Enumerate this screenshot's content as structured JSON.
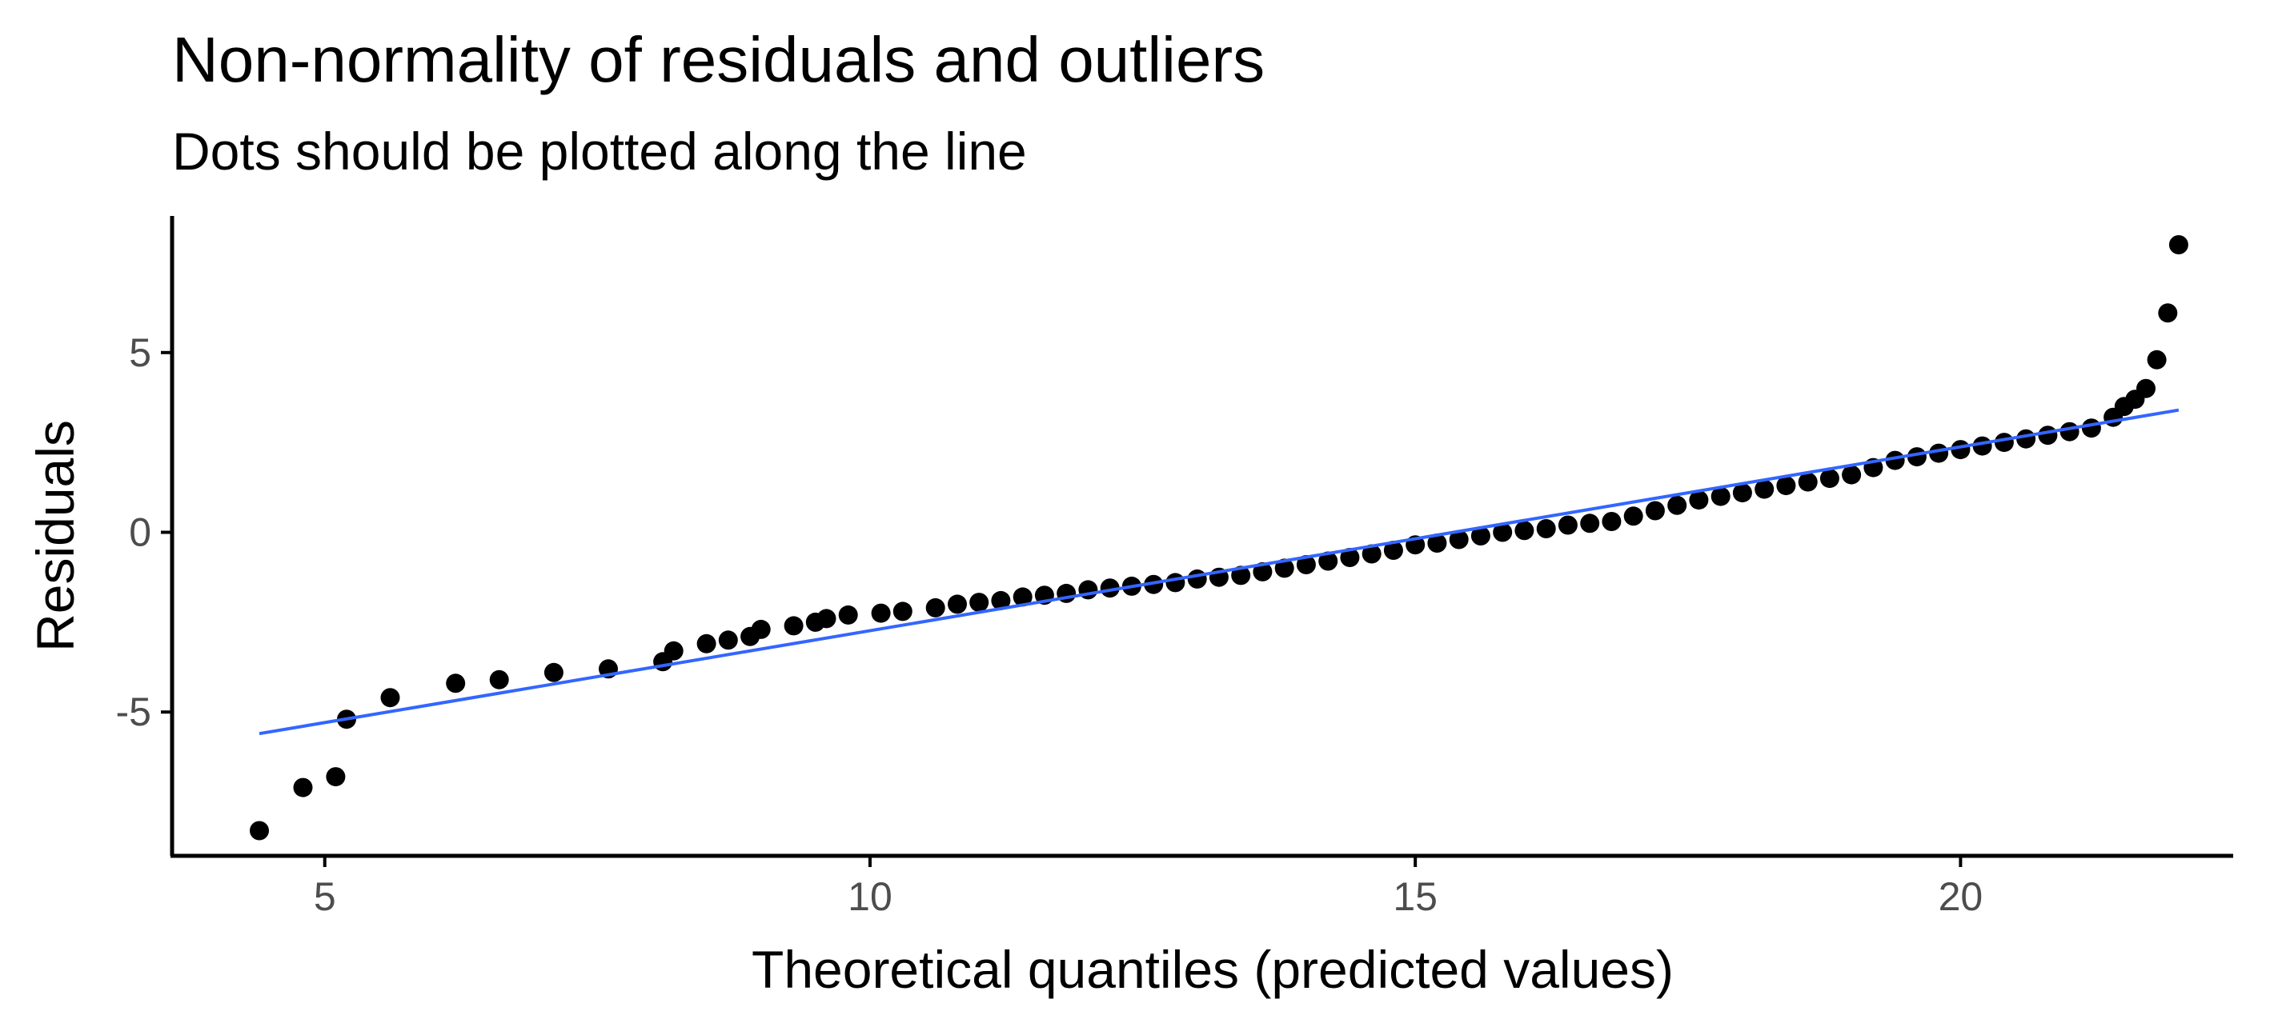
{
  "chart_data": {
    "type": "scatter",
    "title": "Non-normality of residuals and outliers",
    "subtitle": "Dots should be plotted along the line",
    "xlabel": "Theoretical quantiles (predicted values)",
    "ylabel": "Residuals",
    "xlim": [
      3.6,
      22.5
    ],
    "ylim": [
      -9.0,
      8.8
    ],
    "x_ticks": [
      5,
      10,
      15,
      20
    ],
    "x_tick_labels": [
      "5",
      "10",
      "15",
      "20"
    ],
    "y_ticks": [
      -5,
      0,
      5
    ],
    "y_tick_labels": [
      "-5",
      "0",
      "5"
    ],
    "grid": false,
    "legend": "none",
    "colors": {
      "points": "#000000",
      "line": "#3366FF"
    },
    "reference_line": {
      "x": [
        4.4,
        22.0
      ],
      "y": [
        -5.6,
        3.4
      ]
    },
    "series": [
      {
        "points": [
          [
            4.4,
            -8.3
          ],
          [
            4.8,
            -7.1
          ],
          [
            5.1,
            -6.8
          ],
          [
            5.2,
            -5.2
          ],
          [
            5.6,
            -4.6
          ],
          [
            6.2,
            -4.2
          ],
          [
            6.6,
            -4.1
          ],
          [
            7.1,
            -3.9
          ],
          [
            7.6,
            -3.8
          ],
          [
            8.1,
            -3.6
          ],
          [
            8.2,
            -3.3
          ],
          [
            8.5,
            -3.1
          ],
          [
            8.7,
            -3.0
          ],
          [
            8.9,
            -2.9
          ],
          [
            9.0,
            -2.7
          ],
          [
            9.3,
            -2.6
          ],
          [
            9.5,
            -2.5
          ],
          [
            9.6,
            -2.4
          ],
          [
            9.8,
            -2.3
          ],
          [
            10.1,
            -2.25
          ],
          [
            10.3,
            -2.2
          ],
          [
            10.6,
            -2.1
          ],
          [
            10.8,
            -2.0
          ],
          [
            11.0,
            -1.95
          ],
          [
            11.2,
            -1.9
          ],
          [
            11.4,
            -1.8
          ],
          [
            11.6,
            -1.75
          ],
          [
            11.8,
            -1.7
          ],
          [
            12.0,
            -1.6
          ],
          [
            12.2,
            -1.55
          ],
          [
            12.4,
            -1.5
          ],
          [
            12.6,
            -1.45
          ],
          [
            12.8,
            -1.4
          ],
          [
            13.0,
            -1.3
          ],
          [
            13.2,
            -1.25
          ],
          [
            13.4,
            -1.2
          ],
          [
            13.6,
            -1.1
          ],
          [
            13.8,
            -1.0
          ],
          [
            14.0,
            -0.9
          ],
          [
            14.2,
            -0.8
          ],
          [
            14.4,
            -0.7
          ],
          [
            14.6,
            -0.6
          ],
          [
            14.8,
            -0.5
          ],
          [
            15.0,
            -0.35
          ],
          [
            15.2,
            -0.3
          ],
          [
            15.4,
            -0.2
          ],
          [
            15.6,
            -0.1
          ],
          [
            15.8,
            0.0
          ],
          [
            16.0,
            0.05
          ],
          [
            16.2,
            0.1
          ],
          [
            16.4,
            0.2
          ],
          [
            16.6,
            0.25
          ],
          [
            16.8,
            0.3
          ],
          [
            17.0,
            0.45
          ],
          [
            17.2,
            0.6
          ],
          [
            17.4,
            0.75
          ],
          [
            17.6,
            0.9
          ],
          [
            17.8,
            1.0
          ],
          [
            18.0,
            1.1
          ],
          [
            18.2,
            1.2
          ],
          [
            18.4,
            1.3
          ],
          [
            18.6,
            1.4
          ],
          [
            18.8,
            1.5
          ],
          [
            19.0,
            1.6
          ],
          [
            19.2,
            1.8
          ],
          [
            19.4,
            2.0
          ],
          [
            19.6,
            2.1
          ],
          [
            19.8,
            2.2
          ],
          [
            20.0,
            2.3
          ],
          [
            20.2,
            2.4
          ],
          [
            20.4,
            2.5
          ],
          [
            20.6,
            2.6
          ],
          [
            20.8,
            2.7
          ],
          [
            21.0,
            2.8
          ],
          [
            21.2,
            2.9
          ],
          [
            21.4,
            3.2
          ],
          [
            21.5,
            3.5
          ],
          [
            21.6,
            3.7
          ],
          [
            21.7,
            4.0
          ],
          [
            21.8,
            4.8
          ],
          [
            21.9,
            6.1
          ],
          [
            22.0,
            8.0
          ]
        ]
      }
    ]
  }
}
